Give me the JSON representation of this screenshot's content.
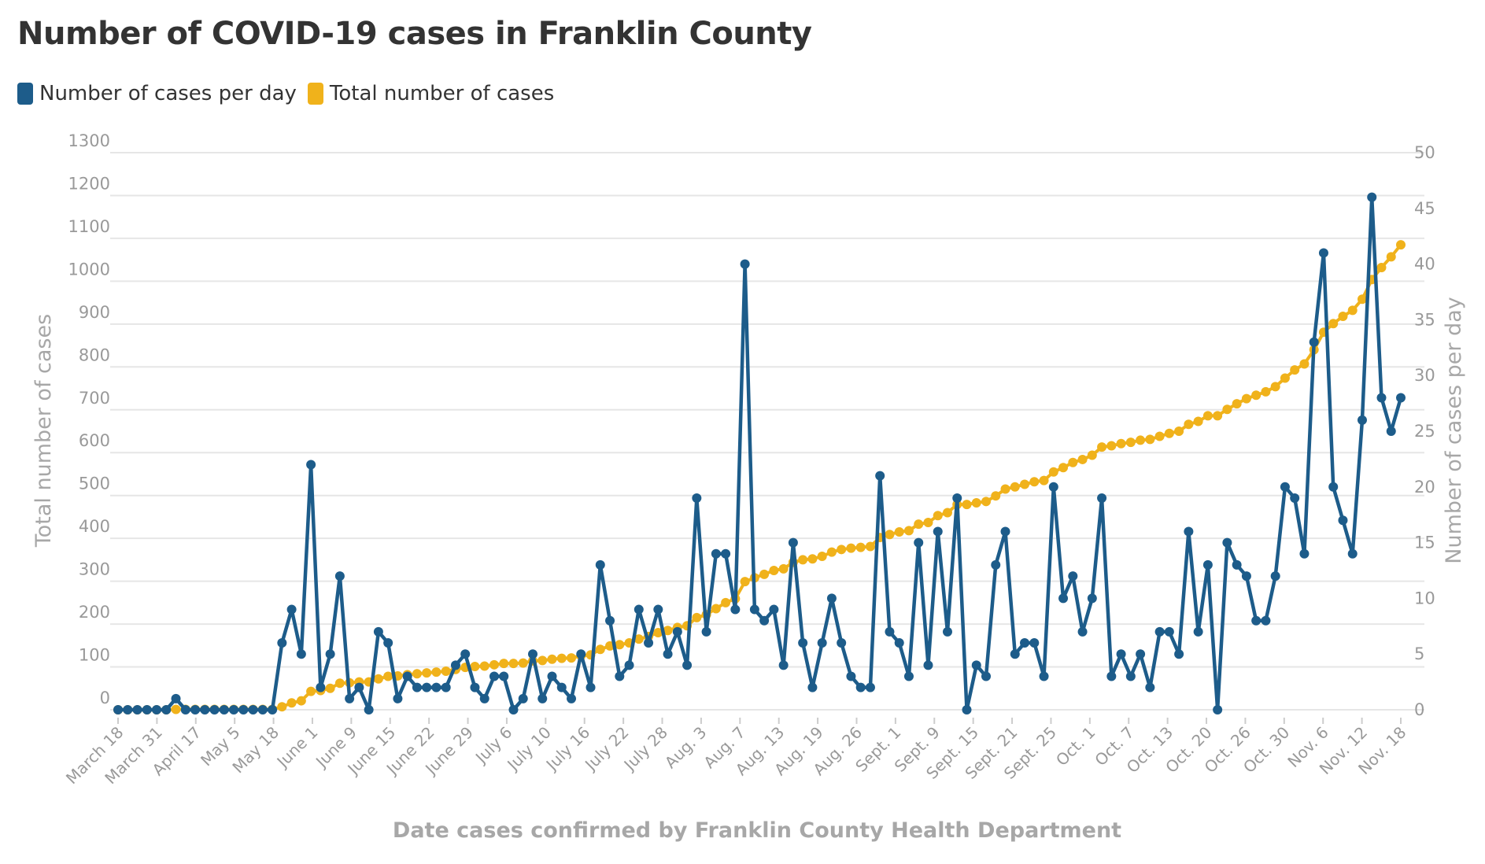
{
  "chart_data": {
    "type": "line",
    "title": "Number of COVID-19 cases in Franklin County",
    "xlabel": "Date cases confirmed by Franklin County Health Department",
    "ylabel_left": "Total number of cases",
    "ylabel_right": "Number of cases per day",
    "left_ylim": [
      0,
      1300
    ],
    "right_ylim": [
      0,
      50
    ],
    "left_ticks": [
      0,
      100,
      200,
      300,
      400,
      500,
      600,
      700,
      800,
      900,
      1000,
      1100,
      1200,
      1300
    ],
    "right_ticks": [
      0,
      5,
      10,
      15,
      20,
      25,
      30,
      35,
      40,
      45,
      50
    ],
    "x_tick_labels": [
      "March 18",
      "March 31",
      "April 17",
      "May 5",
      "May 18",
      "June 1",
      "June 9",
      "June 15",
      "June 22",
      "June 29",
      "July 6",
      "July 10",
      "July 16",
      "July 22",
      "July 28",
      "Aug. 3",
      "Aug. 7",
      "Aug. 13",
      "Aug. 19",
      "Aug. 26",
      "Sept. 1",
      "Sept. 9",
      "Sept. 15",
      "Sept. 21",
      "Sept. 25",
      "Oct. 1",
      "Oct. 7",
      "Oct. 13",
      "Oct. 20",
      "Oct. 26",
      "Oct. 30",
      "Nov. 6",
      "Nov. 12",
      "Nov. 18"
    ],
    "grid": true,
    "legend_position": "top-left",
    "series": [
      {
        "name": "Number of cases per day",
        "axis": "right",
        "color": "#1d5c8a",
        "values": [
          0,
          0,
          0,
          0,
          0,
          0,
          1,
          0,
          0,
          0,
          0,
          0,
          0,
          0,
          0,
          0,
          0,
          6,
          9,
          5,
          22,
          2,
          5,
          12,
          1,
          2,
          0,
          7,
          6,
          1,
          3,
          2,
          2,
          2,
          2,
          4,
          5,
          2,
          1,
          3,
          3,
          0,
          1,
          5,
          1,
          3,
          2,
          1,
          5,
          2,
          13,
          8,
          3,
          4,
          9,
          6,
          9,
          5,
          7,
          4,
          19,
          7,
          14,
          14,
          9,
          40,
          9,
          8,
          9,
          4,
          15,
          6,
          2,
          6,
          10,
          6,
          3,
          2,
          2,
          21,
          7,
          6,
          3,
          15,
          4,
          16,
          7,
          19,
          0,
          4,
          3,
          13,
          16,
          5,
          6,
          6,
          3,
          20,
          10,
          12,
          7,
          10,
          19,
          3,
          5,
          3,
          5,
          2,
          7,
          7,
          5,
          16,
          7,
          13,
          0,
          15,
          13,
          12,
          8,
          8,
          12,
          20,
          19,
          14,
          33,
          41,
          20,
          17,
          14,
          26,
          46,
          28,
          25,
          28
        ]
      },
      {
        "name": "Total number of cases",
        "axis": "left",
        "color": "#f0b21b",
        "values": [
          0,
          0,
          0,
          0,
          0,
          0,
          1,
          1,
          1,
          1,
          1,
          1,
          1,
          1,
          1,
          1,
          1,
          7,
          16,
          21,
          43,
          45,
          50,
          62,
          63,
          65,
          65,
          72,
          78,
          79,
          82,
          84,
          86,
          88,
          90,
          94,
          99,
          101,
          102,
          105,
          108,
          108,
          109,
          114,
          115,
          118,
          120,
          121,
          126,
          128,
          141,
          149,
          152,
          156,
          165,
          171,
          180,
          185,
          192,
          196,
          215,
          222,
          236,
          250,
          259,
          299,
          308,
          316,
          325,
          329,
          344,
          350,
          352,
          358,
          368,
          374,
          377,
          379,
          381,
          402,
          409,
          415,
          418,
          433,
          437,
          453,
          460,
          479,
          479,
          483,
          486,
          499,
          515,
          520,
          526,
          532,
          535,
          555,
          565,
          577,
          584,
          594,
          613,
          616,
          621,
          624,
          629,
          631,
          638,
          645,
          650,
          666,
          673,
          686,
          686,
          701,
          714,
          726,
          734,
          742,
          754,
          774,
          793,
          807,
          840,
          881,
          901,
          918,
          932,
          958,
          1004,
          1032,
          1057,
          1085
        ]
      }
    ]
  }
}
